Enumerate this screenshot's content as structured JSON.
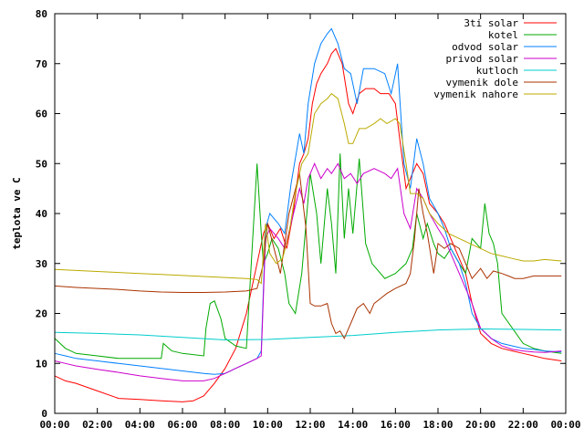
{
  "chart_data": {
    "type": "line",
    "ylabel": "teplota ve C",
    "xlabel": "",
    "title": "",
    "xlim": [
      0,
      24
    ],
    "ylim": [
      0,
      80
    ],
    "x_ticks": [
      "00:00",
      "02:00",
      "04:00",
      "06:00",
      "08:00",
      "10:00",
      "12:00",
      "14:00",
      "16:00",
      "18:00",
      "20:00",
      "22:00",
      "00:00"
    ],
    "y_ticks": [
      0,
      10,
      20,
      30,
      40,
      50,
      60,
      70,
      80
    ],
    "grid": false,
    "legend_position": "top-right",
    "series": [
      {
        "name": "3ti solar",
        "color": "#ff0000",
        "x": [
          0,
          0.5,
          1,
          2,
          3,
          4,
          5,
          6,
          6.5,
          7,
          7.5,
          8,
          8.5,
          9,
          9.5,
          9.8,
          10,
          10.3,
          10.6,
          10.9,
          11.2,
          11.5,
          11.7,
          11.9,
          12.1,
          12.3,
          12.5,
          12.8,
          13,
          13.2,
          13.5,
          13.8,
          14,
          14.3,
          14.6,
          15,
          15.3,
          15.7,
          16,
          16.2,
          16.5,
          16.8,
          17,
          17.3,
          17.6,
          18,
          18.3,
          18.6,
          19,
          19.3,
          19.6,
          20,
          20.5,
          21,
          21.5,
          22,
          22.5,
          23,
          23.8
        ],
        "y": [
          7.5,
          6.5,
          6,
          4.5,
          3,
          2.8,
          2.5,
          2.3,
          2.5,
          3.5,
          6,
          9,
          13,
          20,
          30,
          36,
          38,
          35,
          37,
          33,
          40,
          50,
          52,
          55,
          62,
          66,
          68,
          70,
          72,
          73,
          70,
          62,
          60,
          64,
          65,
          65,
          64,
          64,
          62,
          55,
          45,
          48,
          50,
          48,
          42,
          40,
          38,
          35,
          31,
          28,
          22,
          16,
          14,
          13,
          12.5,
          12,
          11.5,
          11,
          10.5
        ]
      },
      {
        "name": "kotel",
        "color": "#00aa00",
        "x": [
          0,
          0.5,
          1,
          2,
          3,
          4,
          4.5,
          5,
          5.1,
          5.5,
          6,
          7,
          7.1,
          7.3,
          7.5,
          7.8,
          8,
          8.5,
          9,
          9.5,
          9.7,
          9.8,
          10,
          10.2,
          10.5,
          10.8,
          11,
          11.3,
          11.6,
          12,
          12.3,
          12.5,
          12.8,
          13,
          13.2,
          13.4,
          13.6,
          13.8,
          14,
          14.3,
          14.6,
          14.9,
          15.1,
          15.5,
          16,
          16.5,
          16.8,
          17,
          17.3,
          17.5,
          17.8,
          18,
          18.3,
          18.6,
          19,
          19.3,
          19.6,
          20,
          20.2,
          20.4,
          20.6,
          20.8,
          21,
          21.5,
          22,
          22.5,
          23,
          23.8
        ],
        "y": [
          15,
          13,
          12,
          11.5,
          11,
          11,
          11,
          11,
          14,
          12.5,
          12,
          11.5,
          17,
          22,
          22.5,
          19,
          15,
          13.5,
          13,
          50,
          36,
          30,
          32,
          35,
          33,
          28,
          22,
          20,
          28,
          48,
          40,
          30,
          45,
          38,
          28,
          52,
          35,
          45,
          36,
          51,
          34,
          30,
          29,
          27,
          28,
          30,
          33,
          40,
          35,
          38,
          34,
          32,
          31,
          33,
          30,
          28,
          35,
          33,
          42,
          36,
          34,
          30,
          20,
          17,
          14,
          13,
          12.5,
          12
        ]
      },
      {
        "name": "odvod solar",
        "color": "#0080ff",
        "x": [
          0,
          0.5,
          1,
          2,
          3,
          4,
          5,
          6,
          7,
          7.5,
          8,
          8.5,
          9,
          9.5,
          9.7,
          9.9,
          10.1,
          10.5,
          10.8,
          11.1,
          11.5,
          11.7,
          11.9,
          12.2,
          12.5,
          12.8,
          13,
          13.3,
          13.6,
          13.9,
          14.2,
          14.5,
          15,
          15.5,
          15.8,
          16.1,
          16.4,
          16.7,
          17,
          17.3,
          17.6,
          18,
          18.3,
          18.6,
          19,
          19.3,
          19.6,
          20,
          20.5,
          21,
          21.5,
          22,
          22.5,
          23,
          23.8
        ],
        "y": [
          12,
          11.5,
          11,
          10.5,
          10,
          9.5,
          9,
          8.5,
          8,
          7.8,
          8,
          9,
          10,
          11,
          12.5,
          37,
          40,
          38,
          36,
          46,
          56,
          52,
          62,
          70,
          74,
          76,
          77,
          74,
          69,
          68,
          62,
          69,
          69,
          68,
          64,
          70,
          50,
          45,
          55,
          50,
          43,
          40,
          37,
          33,
          30,
          26,
          20,
          17,
          15,
          14,
          13.5,
          13,
          12.8,
          12.5,
          12.3
        ]
      },
      {
        "name": "privod solar",
        "color": "#cc00cc",
        "x": [
          0,
          0.5,
          1,
          2,
          3,
          4,
          5,
          6,
          7,
          7.5,
          8,
          8.5,
          9,
          9.5,
          9.7,
          9.9,
          10.1,
          10.5,
          10.8,
          11.1,
          11.5,
          11.7,
          11.9,
          12.2,
          12.5,
          12.8,
          13,
          13.3,
          13.6,
          13.9,
          14.2,
          14.5,
          15,
          15.5,
          15.8,
          16.1,
          16.4,
          16.7,
          17,
          17.3,
          17.6,
          18,
          18.3,
          18.6,
          19,
          19.3,
          19.6,
          20,
          20.5,
          21,
          21.5,
          22,
          22.5,
          23,
          23.8
        ],
        "y": [
          10.5,
          10,
          9.5,
          8.8,
          8.2,
          7.5,
          7,
          6.5,
          6.5,
          7,
          8,
          9,
          10,
          11,
          11.5,
          35,
          37,
          35,
          33,
          38,
          45,
          42,
          47,
          50,
          47,
          49,
          48,
          50,
          47,
          48,
          46,
          48,
          49,
          48,
          47,
          49,
          40,
          37,
          45,
          43,
          40,
          37,
          35,
          32,
          28,
          25,
          22,
          17,
          15,
          13.5,
          12.8,
          12.5,
          12.3,
          12.2,
          12.5
        ]
      },
      {
        "name": "kutloch",
        "color": "#00cccc",
        "x": [
          0,
          2,
          4,
          6,
          8,
          10,
          12,
          14,
          16,
          18,
          20,
          22,
          23.8
        ],
        "y": [
          16.2,
          16,
          15.7,
          15.2,
          14.7,
          14.8,
          15.2,
          15.6,
          16.2,
          16.7,
          16.9,
          16.8,
          16.7
        ]
      },
      {
        "name": "vymenik dole",
        "color": "#aa3300",
        "x": [
          0,
          1,
          2,
          3,
          4,
          5,
          6,
          7,
          8,
          9,
          9.5,
          9.8,
          10,
          10.3,
          10.6,
          11,
          11.5,
          11.8,
          12,
          12.2,
          12.5,
          12.8,
          13,
          13.2,
          13.4,
          13.6,
          13.8,
          14,
          14.2,
          14.5,
          14.8,
          15,
          15.3,
          15.6,
          16,
          16.5,
          16.7,
          16.9,
          17.1,
          17.3,
          17.5,
          17.8,
          18,
          18.3,
          18.6,
          19,
          19.3,
          19.6,
          20,
          20.3,
          20.6,
          21,
          21.3,
          21.6,
          22,
          22.5,
          23,
          23.8
        ],
        "y": [
          25.5,
          25.2,
          25,
          24.8,
          24.5,
          24.3,
          24.2,
          24.2,
          24.3,
          24.5,
          25,
          30,
          38,
          33,
          28,
          40,
          48,
          37,
          22,
          21.5,
          21.5,
          22,
          18,
          16,
          16.5,
          15,
          17,
          19,
          21,
          22,
          20,
          22,
          23,
          24,
          25,
          26,
          28,
          35,
          45,
          40,
          36,
          28,
          34,
          33,
          34,
          33,
          30,
          27,
          29,
          27,
          28.5,
          28,
          27.5,
          27,
          27,
          27.5,
          27.5,
          27.5
        ]
      },
      {
        "name": "vymenik nahore",
        "color": "#bbaa00",
        "x": [
          0,
          1,
          2,
          3,
          4,
          5,
          6,
          7,
          8,
          9,
          9.5,
          9.7,
          9.9,
          10.1,
          10.4,
          10.7,
          11,
          11.3,
          11.6,
          11.9,
          12.2,
          12.5,
          12.8,
          13,
          13.3,
          13.6,
          13.8,
          14,
          14.3,
          14.6,
          15,
          15.3,
          15.6,
          16,
          16.2,
          16.5,
          16.7,
          17,
          17.3,
          17.6,
          18,
          18.5,
          19,
          19.5,
          20,
          20.5,
          21,
          21.5,
          22,
          22.5,
          23,
          23.8
        ],
        "y": [
          28.8,
          28.6,
          28.4,
          28.2,
          28,
          27.8,
          27.6,
          27.4,
          27.2,
          27,
          26.8,
          26,
          38,
          32,
          30,
          31,
          36,
          44,
          50,
          52,
          60,
          62,
          63,
          64,
          63,
          58,
          54,
          54,
          57,
          57,
          58,
          59,
          58,
          59,
          58,
          50,
          44,
          44,
          43,
          40,
          38,
          36,
          35,
          34,
          33,
          32,
          31.5,
          31,
          30.5,
          30.5,
          30.8,
          30.5
        ]
      }
    ]
  }
}
